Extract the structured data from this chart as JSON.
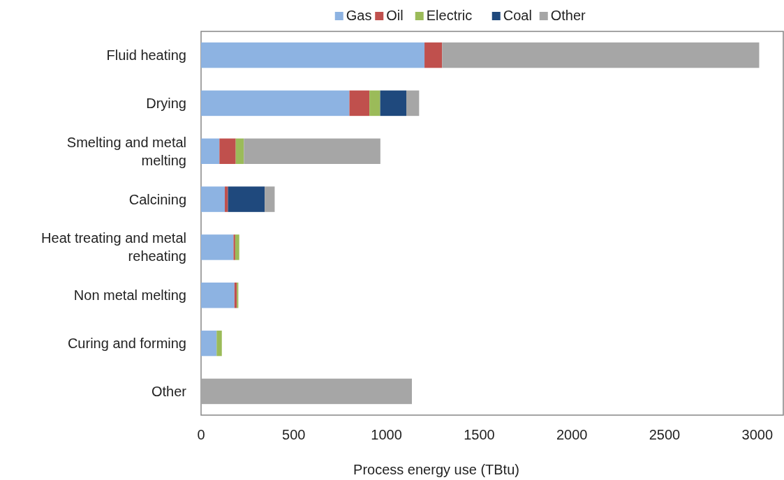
{
  "chart_data": {
    "type": "bar",
    "orientation": "horizontal",
    "stacked": true,
    "xlabel": "Process energy use (TBtu)",
    "categories": [
      "Fluid heating",
      "Drying",
      "Smelting and metal melting",
      "Calcining",
      "Heat treating and metal reheating",
      "Non metal melting",
      "Curing and forming",
      "Other"
    ],
    "series": [
      {
        "name": "Gas",
        "color": "#8db3e2",
        "values": [
          1205,
          800,
          99,
          128,
          175,
          180,
          84,
          0
        ]
      },
      {
        "name": "Oil",
        "color": "#c0504d",
        "values": [
          95,
          108,
          88,
          17,
          9,
          13,
          0,
          0
        ]
      },
      {
        "name": "Electric",
        "color": "#9bbb59",
        "values": [
          0,
          58,
          44,
          0,
          22,
          8,
          28,
          0
        ]
      },
      {
        "name": "Coal",
        "color": "#1f497d",
        "values": [
          0,
          141,
          0,
          198,
          0,
          0,
          0,
          0
        ]
      },
      {
        "name": "Other",
        "color": "#a6a6a6",
        "values": [
          1710,
          69,
          736,
          54,
          0,
          0,
          0,
          1137
        ]
      }
    ],
    "xlim": [
      0,
      3140
    ],
    "xticks": [
      0,
      500,
      1000,
      1500,
      2000,
      2500,
      3000
    ],
    "grid": false,
    "legend": "top"
  }
}
